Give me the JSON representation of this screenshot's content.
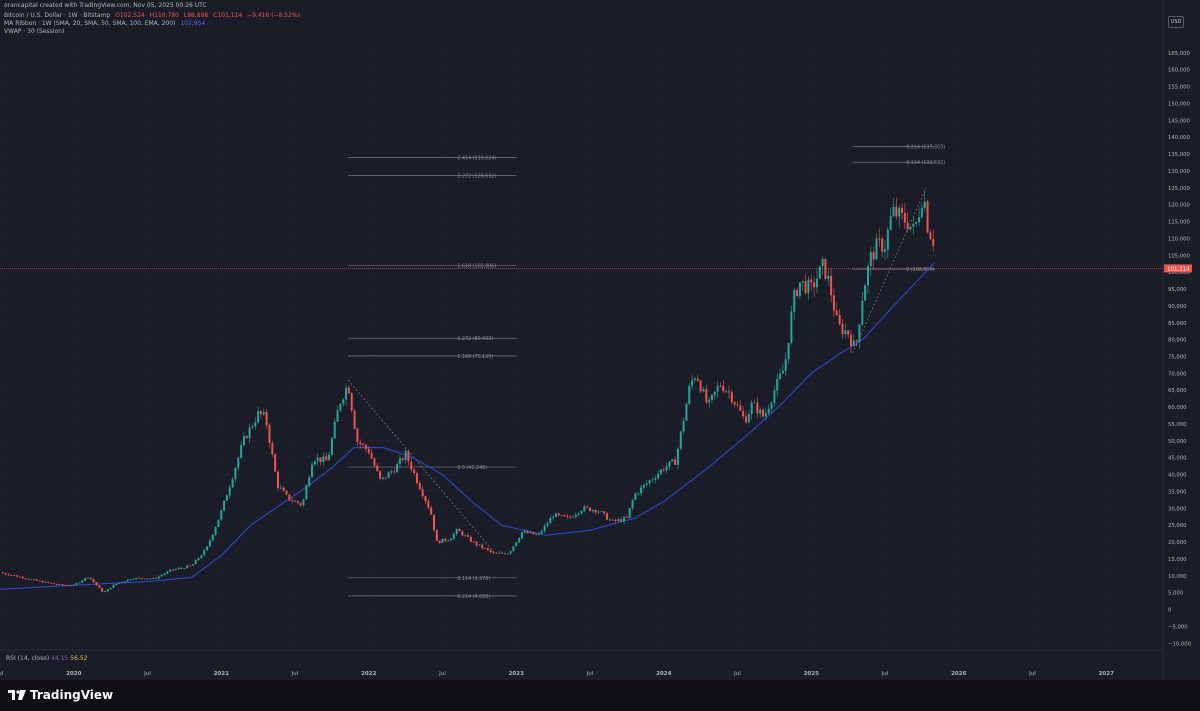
{
  "header": {
    "author": "orancapital created with TradingView.com, Nov 05, 2025 00:26 UTC",
    "symbol": "Bitcoin / U.S. Dollar · 1W · Bitstamp",
    "ohlc": {
      "o": "O102,524",
      "h": "H110,780",
      "l": "L98,898",
      "c": "C101,114",
      "chg": "−9,416 (−8.52%)"
    },
    "indicators": [
      {
        "label": "MA Ribbon · 1W (SMA, 20, SMA, 50, SMA, 100, EMA, 200)",
        "value": "102,954"
      },
      {
        "label": "VWAP · 30 (Session)",
        "value": ""
      }
    ]
  },
  "rsi": {
    "label": "RSI (14, close)",
    "v1": "44.15",
    "v2": "56.52"
  },
  "currency": "USD",
  "price_label": "101,114",
  "brand": "TradingView",
  "colors": {
    "up": "#26a69a",
    "down": "#ef5350",
    "ma": "#2f4bd8",
    "bg": "#1a1d27",
    "fib": "#8c8f99"
  },
  "chart_data": {
    "type": "candlestick",
    "interval": "1W",
    "x_ticks": [
      "Jul",
      "2020",
      "Jul",
      "2021",
      "Jul",
      "2022",
      "Jul",
      "2023",
      "Jul",
      "2024",
      "Jul",
      "2025",
      "Jul",
      "2026",
      "Jul",
      "2027"
    ],
    "y_ticks": [
      -10000,
      -5000,
      0,
      5000,
      10000,
      15000,
      20000,
      25000,
      30000,
      35000,
      40000,
      45000,
      50000,
      55000,
      60000,
      65000,
      70000,
      75000,
      80000,
      85000,
      90000,
      95000,
      100000,
      105000,
      110000,
      115000,
      120000,
      125000,
      130000,
      135000,
      140000,
      145000,
      150000,
      155000,
      160000,
      165000
    ],
    "ylim": [
      -12000,
      170000
    ],
    "xlim": [
      2019.5,
      2027.5
    ],
    "price_anchors": [
      [
        2019.5,
        11000
      ],
      [
        2019.6,
        10000
      ],
      [
        2019.75,
        8500
      ],
      [
        2019.9,
        7300
      ],
      [
        2020.0,
        7200
      ],
      [
        2020.1,
        9800
      ],
      [
        2020.2,
        5000
      ],
      [
        2020.28,
        7500
      ],
      [
        2020.4,
        9300
      ],
      [
        2020.55,
        9200
      ],
      [
        2020.65,
        11500
      ],
      [
        2020.8,
        13000
      ],
      [
        2020.9,
        18000
      ],
      [
        2021.0,
        29000
      ],
      [
        2021.08,
        40000
      ],
      [
        2021.15,
        50000
      ],
      [
        2021.25,
        58000
      ],
      [
        2021.3,
        57000
      ],
      [
        2021.38,
        37000
      ],
      [
        2021.45,
        33000
      ],
      [
        2021.55,
        31000
      ],
      [
        2021.62,
        45000
      ],
      [
        2021.72,
        44000
      ],
      [
        2021.8,
        61000
      ],
      [
        2021.86,
        67000
      ],
      [
        2021.92,
        50000
      ],
      [
        2022.0,
        47000
      ],
      [
        2022.08,
        38000
      ],
      [
        2022.18,
        42000
      ],
      [
        2022.25,
        46000
      ],
      [
        2022.33,
        38000
      ],
      [
        2022.42,
        29000
      ],
      [
        2022.46,
        20000
      ],
      [
        2022.55,
        21000
      ],
      [
        2022.6,
        23500
      ],
      [
        2022.72,
        19500
      ],
      [
        2022.85,
        16500
      ],
      [
        2022.95,
        16800
      ],
      [
        2023.04,
        23000
      ],
      [
        2023.15,
        22000
      ],
      [
        2023.25,
        28000
      ],
      [
        2023.35,
        27000
      ],
      [
        2023.45,
        30000
      ],
      [
        2023.55,
        29500
      ],
      [
        2023.65,
        26000
      ],
      [
        2023.75,
        27000
      ],
      [
        2023.8,
        34000
      ],
      [
        2023.9,
        38000
      ],
      [
        2024.0,
        42000
      ],
      [
        2024.08,
        44000
      ],
      [
        2024.18,
        67000
      ],
      [
        2024.22,
        70000
      ],
      [
        2024.3,
        60000
      ],
      [
        2024.38,
        67000
      ],
      [
        2024.45,
        64000
      ],
      [
        2024.55,
        56000
      ],
      [
        2024.6,
        61000
      ],
      [
        2024.68,
        57000
      ],
      [
        2024.75,
        65000
      ],
      [
        2024.82,
        72000
      ],
      [
        2024.88,
        92000
      ],
      [
        2024.92,
        97000
      ],
      [
        2025.0,
        95000
      ],
      [
        2025.08,
        102000
      ],
      [
        2025.12,
        97000
      ],
      [
        2025.18,
        84000
      ],
      [
        2025.25,
        82000
      ],
      [
        2025.3,
        77000
      ],
      [
        2025.35,
        94000
      ],
      [
        2025.4,
        104000
      ],
      [
        2025.45,
        108000
      ],
      [
        2025.5,
        108000
      ],
      [
        2025.55,
        118000
      ],
      [
        2025.65,
        115000
      ],
      [
        2025.7,
        112000
      ],
      [
        2025.76,
        124000
      ],
      [
        2025.8,
        110000
      ],
      [
        2025.82,
        114000
      ],
      [
        2025.84,
        101114
      ]
    ],
    "ma_anchors": [
      [
        2019.5,
        6000
      ],
      [
        2020.0,
        7200
      ],
      [
        2020.5,
        8300
      ],
      [
        2020.8,
        9500
      ],
      [
        2021.0,
        16000
      ],
      [
        2021.2,
        25000
      ],
      [
        2021.4,
        31000
      ],
      [
        2021.6,
        37000
      ],
      [
        2021.75,
        42000
      ],
      [
        2021.9,
        48000
      ],
      [
        2022.1,
        48000
      ],
      [
        2022.3,
        45000
      ],
      [
        2022.5,
        40000
      ],
      [
        2022.7,
        32000
      ],
      [
        2022.9,
        25000
      ],
      [
        2023.2,
        22000
      ],
      [
        2023.5,
        23500
      ],
      [
        2023.8,
        27000
      ],
      [
        2024.0,
        32000
      ],
      [
        2024.3,
        42000
      ],
      [
        2024.6,
        53000
      ],
      [
        2024.8,
        61000
      ],
      [
        2025.0,
        70000
      ],
      [
        2025.2,
        76000
      ],
      [
        2025.35,
        80000
      ],
      [
        2025.6,
        92000
      ],
      [
        2025.84,
        102954
      ]
    ],
    "fib_set1": {
      "x_start": 2021.86,
      "x_end": 2023.0,
      "levels": [
        {
          "label": "2.414 (133,924)",
          "value": 133924
        },
        {
          "label": "2.272 (128,632)",
          "value": 128632
        },
        {
          "label": "1.618 (102,006)",
          "value": 102006
        },
        {
          "label": "1.272 (80,433)",
          "value": 80433
        },
        {
          "label": "1.168 (75,169)",
          "value": 75169
        },
        {
          "label": "0.5 (42,248)",
          "value": 42248
        },
        {
          "label": "0.114 (9,378)",
          "value": 9378
        },
        {
          "label": "0.214 (4,020)",
          "value": 4020
        }
      ]
    },
    "fib_set2": {
      "x_start": 2025.28,
      "x_end": 2025.84,
      "levels": [
        {
          "label": "0.214 (137,303)",
          "value": 137303
        },
        {
          "label": "0.114 (132,592)",
          "value": 132592
        },
        {
          "label": "0 (100,910)",
          "value": 100910
        }
      ]
    }
  }
}
